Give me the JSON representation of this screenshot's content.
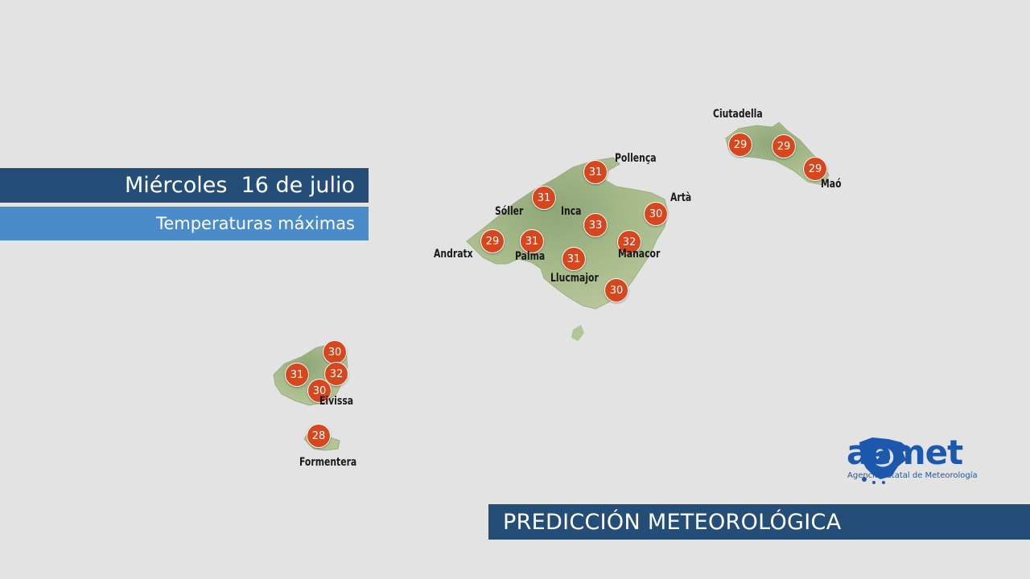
{
  "header": {
    "date": "Miércoles  16 de julio",
    "subtitle": "Temperaturas máximas"
  },
  "footer": {
    "title": "PREDICCIÓN METEOROLÓGICA"
  },
  "logo": {
    "name": "aemet",
    "tagline": "Agencia Estatal de Meteorología",
    "color": "#1c58ad"
  },
  "colors": {
    "badge": "#d6471e",
    "banner_dark": "#244e78",
    "banner_light": "#4a8cc9",
    "land": "#a9bc8c",
    "sea": "#e3e3e3"
  },
  "places": [
    "Pollença",
    "Sóller",
    "Inca",
    "Artà",
    "Andratx",
    "Palma",
    "Manacor",
    "Llucmajor",
    "Ciutadella",
    "Maó",
    "Eivissa",
    "Formentera"
  ],
  "temperatures": [
    "31",
    "31",
    "33",
    "30",
    "29",
    "31",
    "32",
    "31",
    "30",
    "29",
    "29",
    "29",
    "30",
    "31",
    "32",
    "30",
    "28"
  ]
}
